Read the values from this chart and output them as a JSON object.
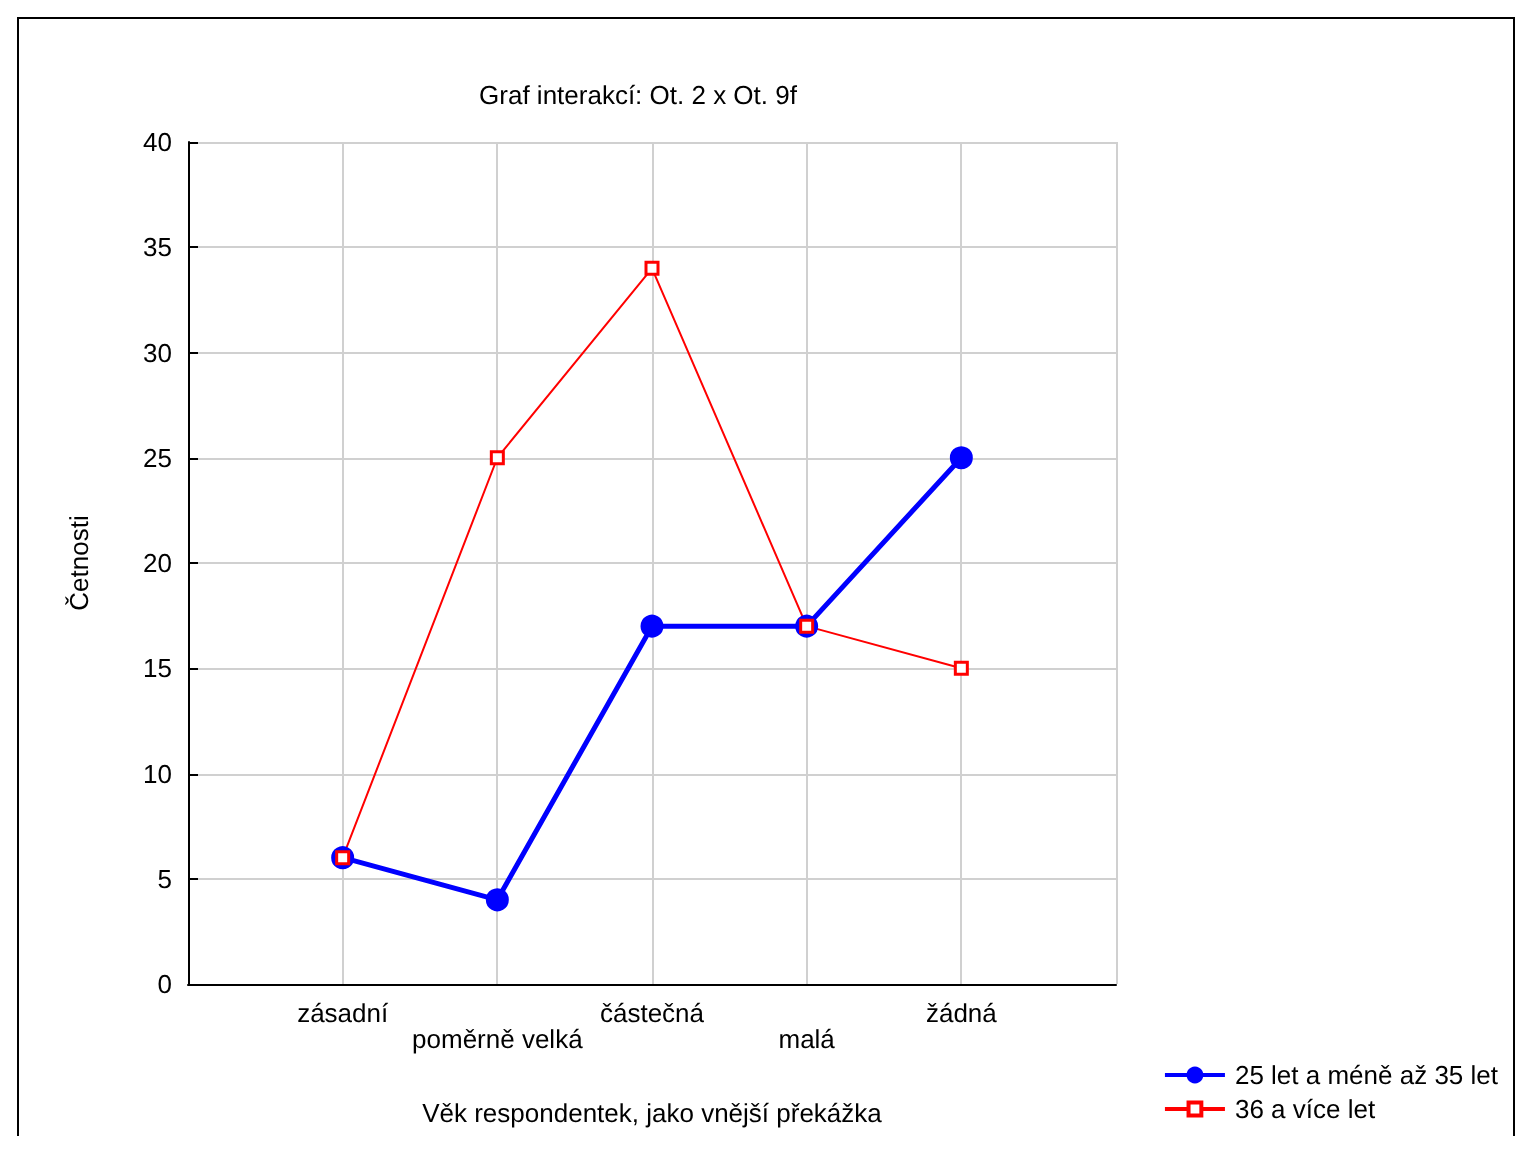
{
  "chart_data": {
    "type": "line",
    "title": "Graf interakcí: Ot. 2 x Ot. 9f",
    "xlabel": "Věk respondentek, jako vnější překážka",
    "ylabel": "Četnosti",
    "categories": [
      "zásadní",
      "poměrně velká",
      "částečná",
      "malá",
      "žádná"
    ],
    "series": [
      {
        "name": "25 let a méně až 35 let",
        "color": "#0000ff",
        "values": [
          6,
          4,
          17,
          17,
          25
        ],
        "marker": "circle"
      },
      {
        "name": "36 a více let",
        "color": "#ff0000",
        "values": [
          6,
          25,
          34,
          17,
          15
        ],
        "marker": "square"
      }
    ],
    "ylim": [
      0,
      40
    ],
    "yticks": [
      0,
      5,
      10,
      15,
      20,
      25,
      30,
      35,
      40
    ],
    "grid": true,
    "legend": "bottom right"
  }
}
